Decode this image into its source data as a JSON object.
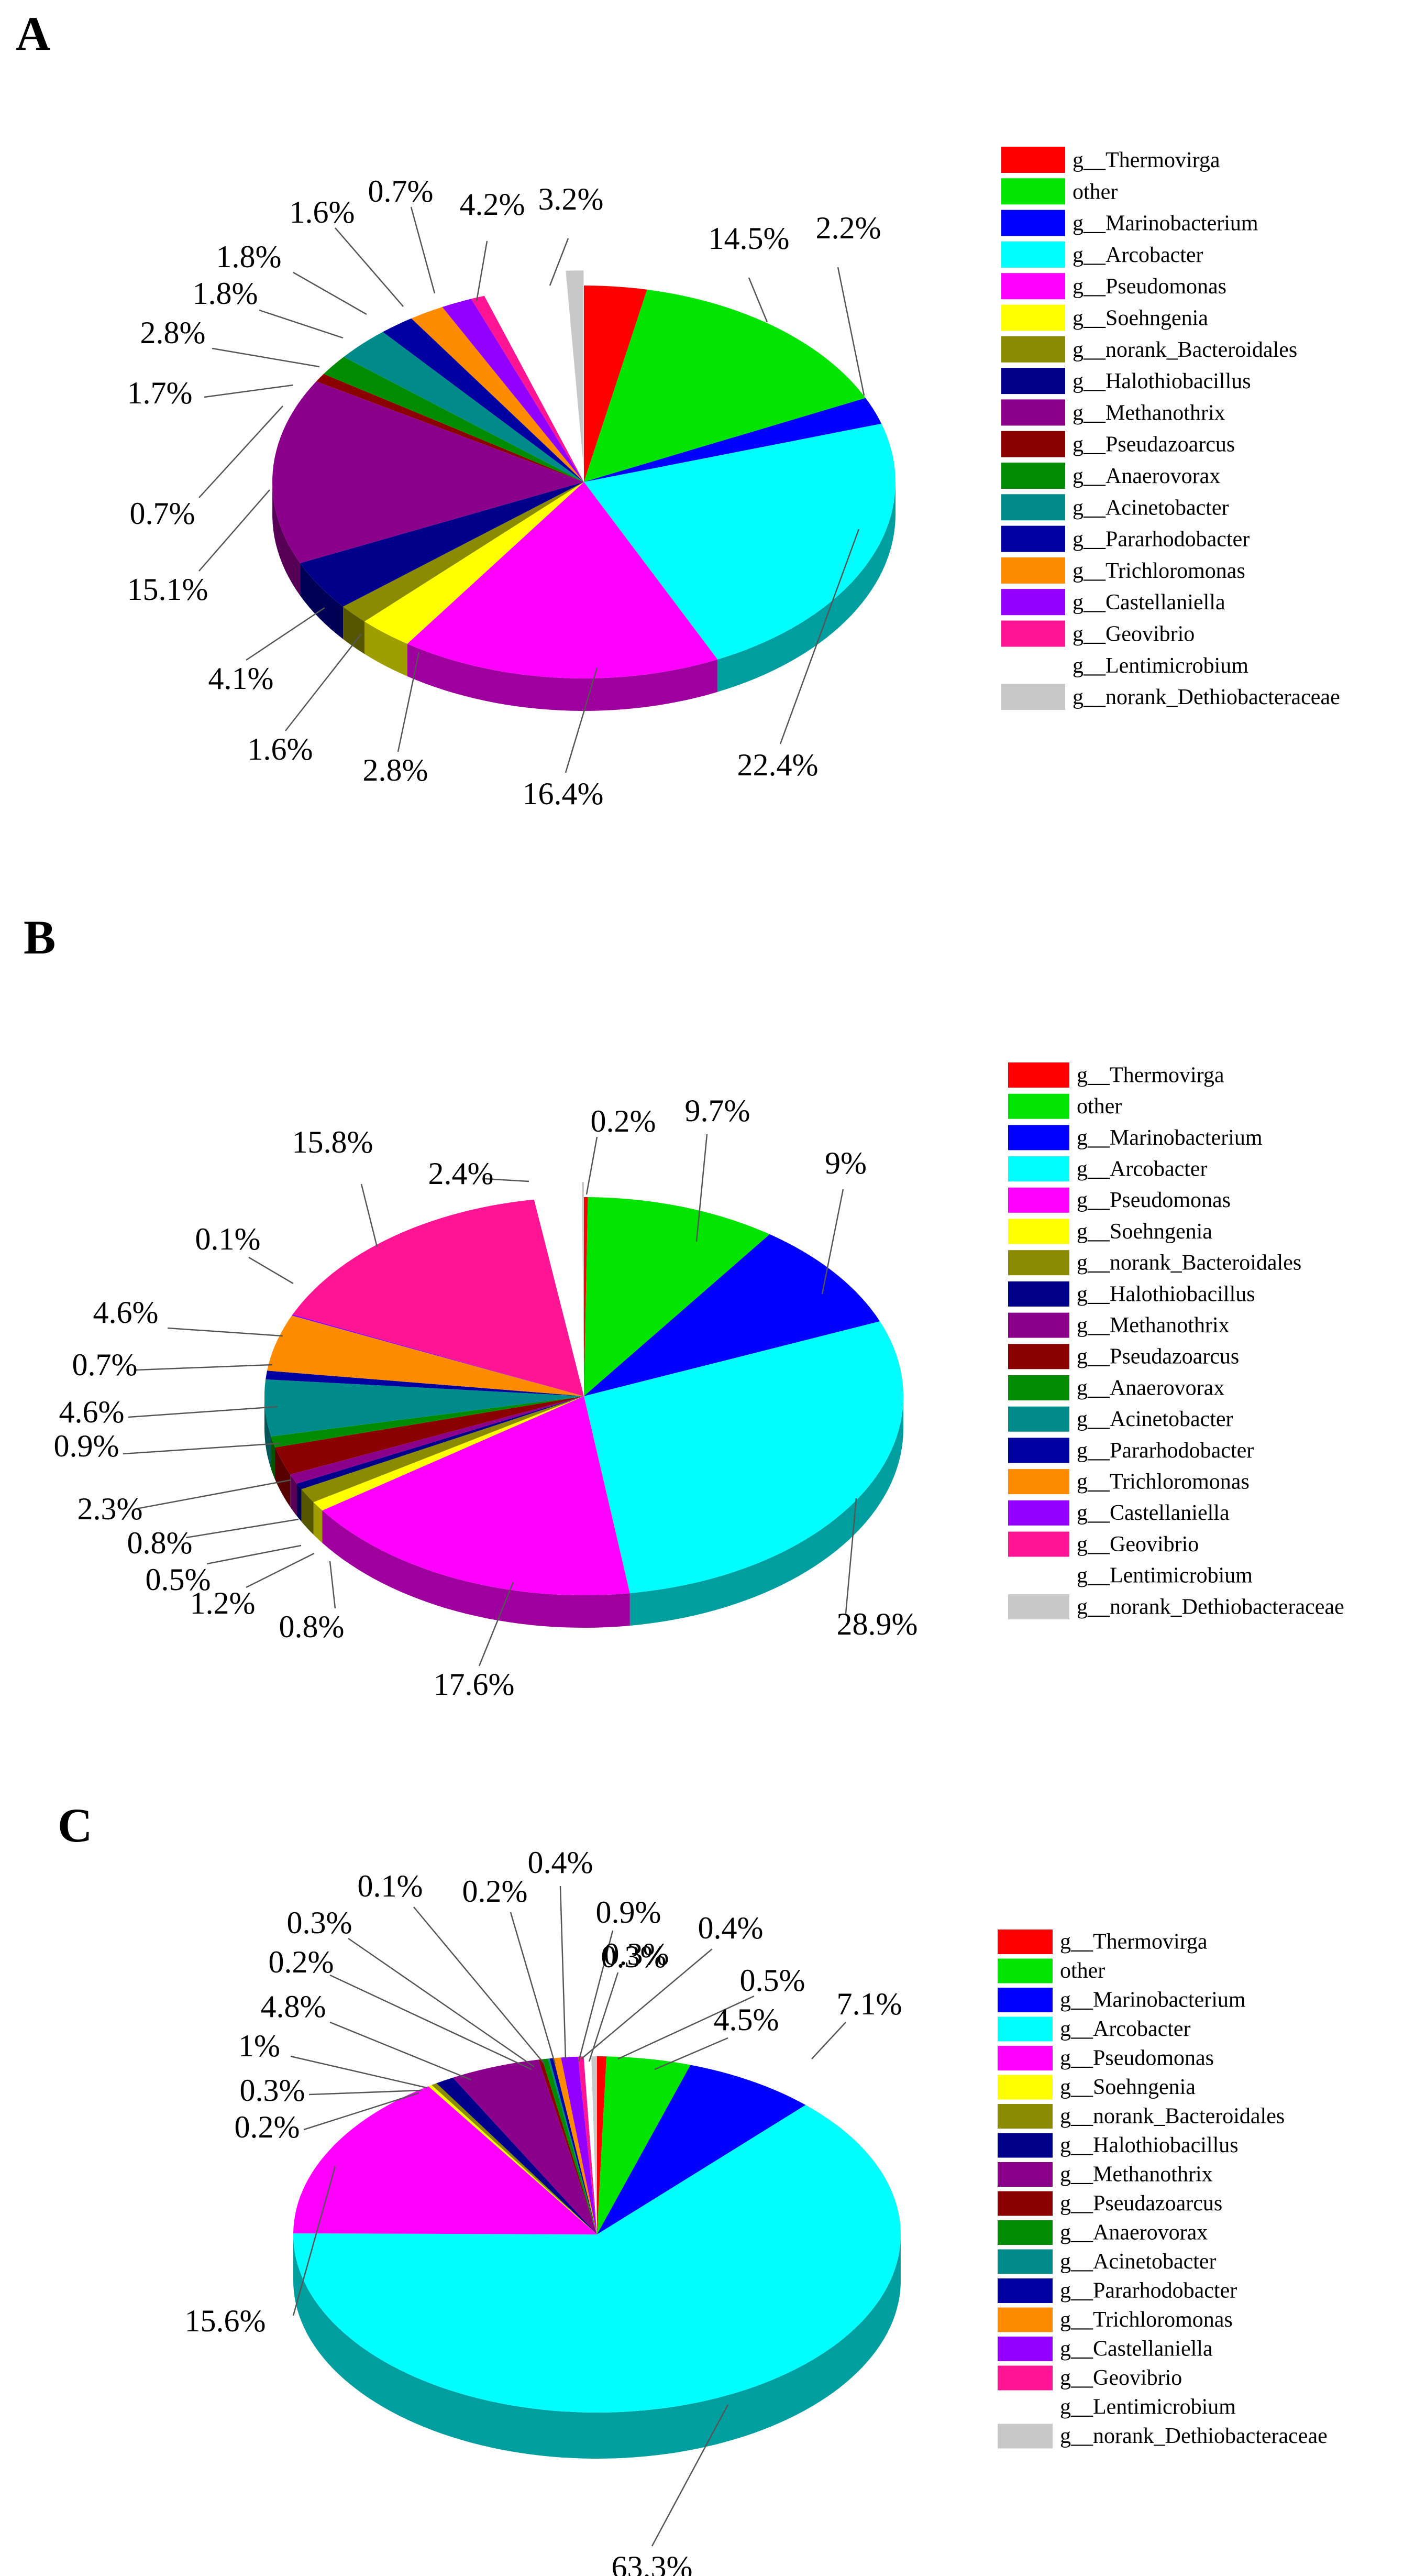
{
  "chart_data": [
    {
      "type": "pie",
      "panel_label": "A",
      "categories": [
        "g__Thermovirga",
        "other",
        "g__Marinobacterium",
        "g__Arcobacter",
        "g__Pseudomonas",
        "g__Soehngenia",
        "g__norank_Bacteroidales",
        "g__Halothiobacillus",
        "g__Methanothrix",
        "g__Pseudazoarcus",
        "g__Anaerovorax",
        "g__Acinetobacter",
        "g__Pararhodobacter",
        "g__Trichloromonas",
        "g__Castellaniella",
        "g__Geovibrio",
        "g__Lentimicrobium",
        "g__norank_Dethiobacteraceae"
      ],
      "values": [
        3.2,
        14.5,
        2.2,
        22.4,
        16.4,
        2.8,
        1.6,
        4.1,
        15.1,
        0.7,
        1.7,
        2.8,
        1.8,
        1.8,
        1.6,
        0.7,
        4.2,
        0.9
      ],
      "slice_labels": [
        "3.2%",
        "14.5%",
        "2.2%",
        "22.4%",
        "16.4%",
        "2.8%",
        "1.6%",
        "4.1%",
        "15.1%",
        "0.7%",
        "1.7%",
        "2.8%",
        "1.8%",
        "1.8%",
        "1.6%",
        "0.7%",
        "4.2%",
        ""
      ],
      "legend_position": "right"
    },
    {
      "type": "pie",
      "panel_label": "B",
      "categories": [
        "g__Thermovirga",
        "other",
        "g__Marinobacterium",
        "g__Arcobacter",
        "g__Pseudomonas",
        "g__Soehngenia",
        "g__norank_Bacteroidales",
        "g__Halothiobacillus",
        "g__Methanothrix",
        "g__Pseudazoarcus",
        "g__Anaerovorax",
        "g__Acinetobacter",
        "g__Pararhodobacter",
        "g__Trichloromonas",
        "g__Castellaniella",
        "g__Geovibrio",
        "g__Lentimicrobium",
        "g__norank_Dethiobacteraceae"
      ],
      "values": [
        0.2,
        9.7,
        9,
        28.9,
        17.6,
        0.8,
        1.2,
        0.5,
        0.8,
        2.3,
        0.9,
        4.6,
        0.7,
        4.6,
        0.1,
        15.8,
        2.4,
        0.1
      ],
      "slice_labels": [
        "0.2%",
        "9.7%",
        "9%",
        "28.9%",
        "17.6%",
        "0.8%",
        "1.2%",
        "0.5%",
        "0.8%",
        "2.3%",
        "0.9%",
        "4.6%",
        "0.7%",
        "4.6%",
        "0.1%",
        "15.8%",
        "2.4%",
        ""
      ],
      "legend_position": "right"
    },
    {
      "type": "pie",
      "panel_label": "C",
      "categories": [
        "g__Thermovirga",
        "other",
        "g__Marinobacterium",
        "g__Arcobacter",
        "g__Pseudomonas",
        "g__Soehngenia",
        "g__norank_Bacteroidales",
        "g__Halothiobacillus",
        "g__Methanothrix",
        "g__Pseudazoarcus",
        "g__Anaerovorax",
        "g__Acinetobacter",
        "g__Pararhodobacter",
        "g__Trichloromonas",
        "g__Castellaniella",
        "g__Geovibrio",
        "g__Lentimicrobium",
        "g__norank_Dethiobacteraceae"
      ],
      "values": [
        0.5,
        4.5,
        7.1,
        63.3,
        15.6,
        0.2,
        0.3,
        1,
        4.8,
        0.2,
        0.3,
        0.1,
        0.2,
        0.4,
        0.9,
        0.3,
        0.4,
        0.3
      ],
      "slice_labels": [
        "0.5%",
        "4.5%",
        "7.1%",
        "63.3%",
        "15.6%",
        "0.2%",
        "0.3%",
        "1%",
        "4.8%",
        "0.2%",
        "0.3%",
        "0.1%",
        "0.2%",
        "0.4%",
        "0.9%",
        "0.3%",
        "0.4%",
        "0.3%"
      ],
      "legend_position": "right"
    }
  ],
  "colors": [
    "#ff0000",
    "#00e400",
    "#0000ff",
    "#00ffff",
    "#ff00ff",
    "#ffff00",
    "#8b8b00",
    "#00008b",
    "#8b008b",
    "#8b0000",
    "#008b00",
    "#008b8b",
    "#0000a0",
    "#ff8c00",
    "#9400ff",
    "#ff1493",
    "#ffffff",
    "#c8c8c8"
  ]
}
